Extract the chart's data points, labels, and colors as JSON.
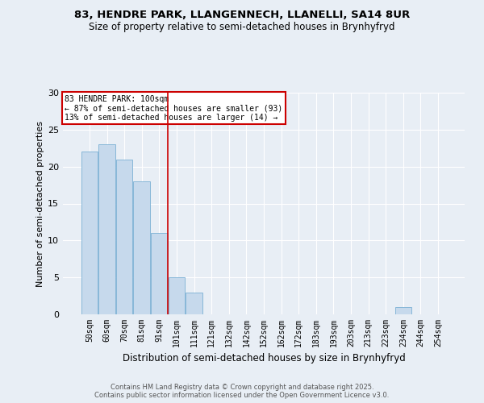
{
  "title1": "83, HENDRE PARK, LLANGENNECH, LLANELLI, SA14 8UR",
  "title2": "Size of property relative to semi-detached houses in Brynhyfryd",
  "xlabel": "Distribution of semi-detached houses by size in Brynhyfryd",
  "ylabel": "Number of semi-detached properties",
  "categories": [
    "50sqm",
    "60sqm",
    "70sqm",
    "81sqm",
    "91sqm",
    "101sqm",
    "111sqm",
    "121sqm",
    "132sqm",
    "142sqm",
    "152sqm",
    "162sqm",
    "172sqm",
    "183sqm",
    "193sqm",
    "203sqm",
    "213sqm",
    "223sqm",
    "234sqm",
    "244sqm",
    "254sqm"
  ],
  "values": [
    22,
    23,
    21,
    18,
    11,
    5,
    3,
    0,
    0,
    0,
    0,
    0,
    0,
    0,
    0,
    0,
    0,
    0,
    1,
    0,
    0
  ],
  "bar_color": "#c6d9ec",
  "bar_edge_color": "#7ab0d4",
  "annotation_title": "83 HENDRE PARK: 100sqm",
  "annotation_line1": "← 87% of semi-detached houses are smaller (93)",
  "annotation_line2": "13% of semi-detached houses are larger (14) →",
  "annotation_box_color": "#ffffff",
  "annotation_box_edge_color": "#cc0000",
  "vline_x": 4.5,
  "vline_color": "#cc0000",
  "ylim": [
    0,
    30
  ],
  "yticks": [
    0,
    5,
    10,
    15,
    20,
    25,
    30
  ],
  "footer1": "Contains HM Land Registry data © Crown copyright and database right 2025.",
  "footer2": "Contains public sector information licensed under the Open Government Licence v3.0.",
  "bg_color": "#e8eef5",
  "plot_bg_color": "#e8eef5",
  "grid_color": "#ffffff",
  "title1_fontsize": 9.5,
  "title2_fontsize": 8.5,
  "xlabel_fontsize": 8.5,
  "ylabel_fontsize": 8,
  "tick_fontsize": 7,
  "ann_fontsize": 7,
  "footer_fontsize": 6
}
